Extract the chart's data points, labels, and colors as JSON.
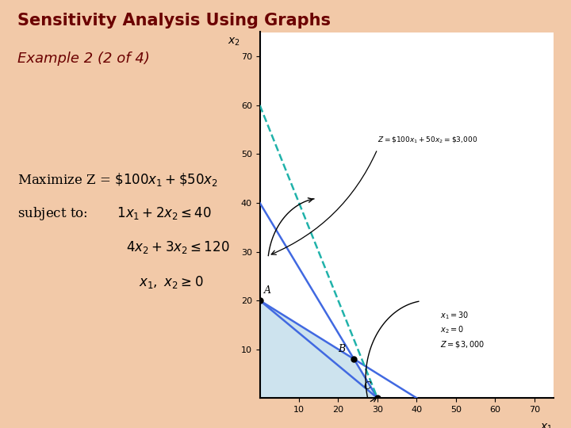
{
  "title": "Sensitivity Analysis Using Graphs",
  "subtitle": "Example 2 (2 of 4)",
  "title_color": "#6B0000",
  "subtitle_color": "#6B0000",
  "bg_color": "#F2C9A8",
  "plot_bg_color": "#FFFFFF",
  "xlim": [
    0,
    75
  ],
  "ylim": [
    0,
    75
  ],
  "xticks": [
    10,
    20,
    30,
    40,
    50,
    60,
    70
  ],
  "yticks": [
    10,
    20,
    30,
    40,
    50,
    60,
    70
  ],
  "feasible_region": [
    [
      0,
      0
    ],
    [
      0,
      20
    ],
    [
      24,
      8
    ],
    [
      30,
      0
    ]
  ],
  "feasible_color": "#B8D8E8",
  "feasible_alpha": 0.7,
  "constraint1_color": "#4169E1",
  "constraint2_color": "#4169E1",
  "obj_dashed_color": "#20B2AA",
  "obj_solid_color": "#4169E1",
  "arrow_color": "black",
  "point_color": "black",
  "ann_z_text": "Z = $100x1 + 50x2 = $3,000",
  "ann_opt_text": "x1 = 30\nx2 = 0\nZ = $3,000"
}
